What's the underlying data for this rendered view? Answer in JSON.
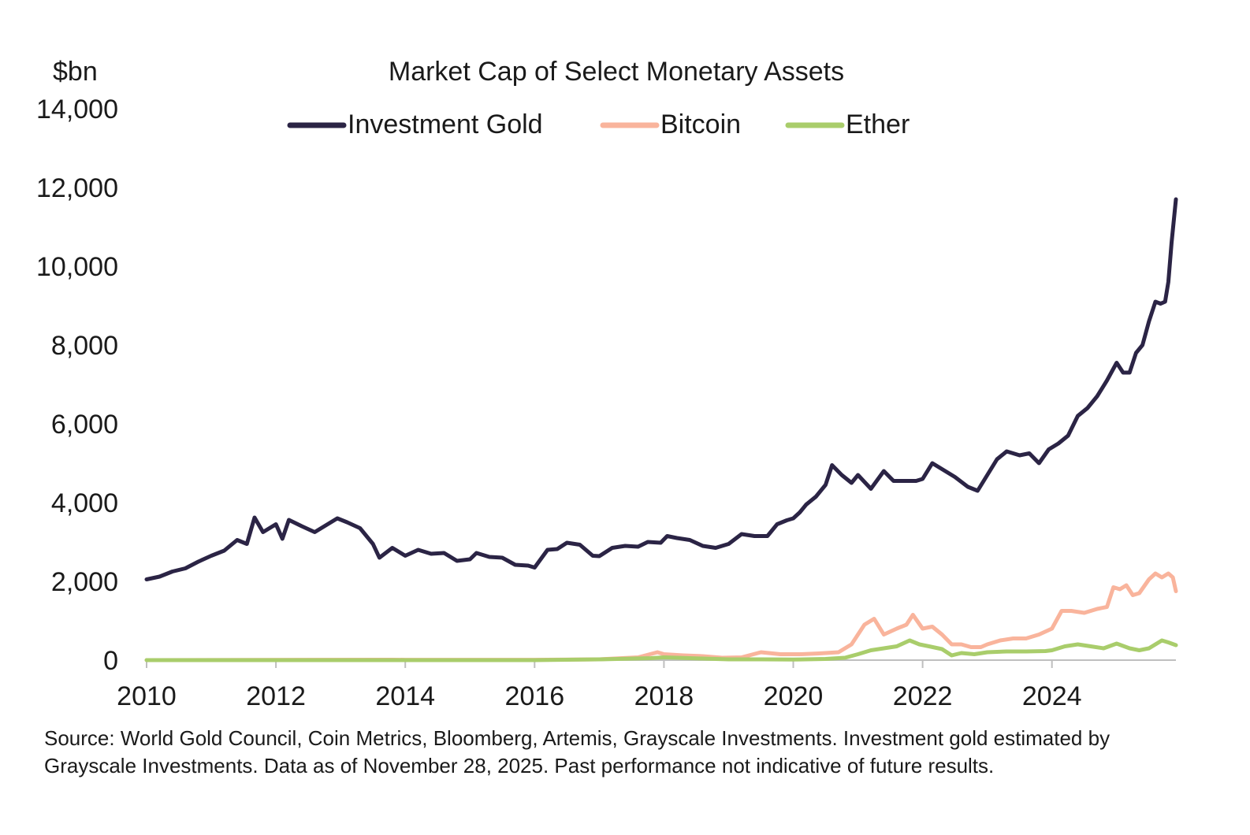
{
  "chart_data": {
    "type": "line",
    "title": "Market Cap of Select Monetary Assets",
    "ylabel": "$bn",
    "xlabel": "",
    "ylim": [
      0,
      14000
    ],
    "xlim": [
      2010,
      2025.917
    ],
    "yticks": [
      0,
      2000,
      4000,
      6000,
      8000,
      10000,
      12000,
      14000
    ],
    "ytick_labels": [
      "0",
      "2,000",
      "4,000",
      "6,000",
      "8,000",
      "10,000",
      "12,000",
      "14,000"
    ],
    "xticks": [
      2010,
      2012,
      2014,
      2016,
      2018,
      2020,
      2022,
      2024
    ],
    "xtick_labels": [
      "2010",
      "2012",
      "2014",
      "2016",
      "2018",
      "2020",
      "2022",
      "2024"
    ],
    "legend_position": "top-center",
    "series": [
      {
        "name": "Investment Gold",
        "color": "#2b2445",
        "points": [
          [
            2010.0,
            2050
          ],
          [
            2010.2,
            2120
          ],
          [
            2010.4,
            2250
          ],
          [
            2010.6,
            2330
          ],
          [
            2010.8,
            2500
          ],
          [
            2011.0,
            2650
          ],
          [
            2011.2,
            2780
          ],
          [
            2011.4,
            3050
          ],
          [
            2011.55,
            2950
          ],
          [
            2011.67,
            3620
          ],
          [
            2011.8,
            3250
          ],
          [
            2012.0,
            3450
          ],
          [
            2012.1,
            3080
          ],
          [
            2012.2,
            3560
          ],
          [
            2012.4,
            3400
          ],
          [
            2012.6,
            3250
          ],
          [
            2012.8,
            3450
          ],
          [
            2012.95,
            3600
          ],
          [
            2013.1,
            3500
          ],
          [
            2013.3,
            3350
          ],
          [
            2013.5,
            2950
          ],
          [
            2013.6,
            2600
          ],
          [
            2013.8,
            2850
          ],
          [
            2014.0,
            2650
          ],
          [
            2014.2,
            2800
          ],
          [
            2014.4,
            2700
          ],
          [
            2014.6,
            2720
          ],
          [
            2014.8,
            2520
          ],
          [
            2015.0,
            2560
          ],
          [
            2015.1,
            2720
          ],
          [
            2015.3,
            2620
          ],
          [
            2015.5,
            2600
          ],
          [
            2015.7,
            2420
          ],
          [
            2015.9,
            2400
          ],
          [
            2016.0,
            2350
          ],
          [
            2016.2,
            2800
          ],
          [
            2016.35,
            2820
          ],
          [
            2016.5,
            2980
          ],
          [
            2016.7,
            2930
          ],
          [
            2016.9,
            2650
          ],
          [
            2017.0,
            2640
          ],
          [
            2017.2,
            2850
          ],
          [
            2017.4,
            2900
          ],
          [
            2017.6,
            2880
          ],
          [
            2017.75,
            3000
          ],
          [
            2017.95,
            2980
          ],
          [
            2018.05,
            3150
          ],
          [
            2018.2,
            3100
          ],
          [
            2018.4,
            3050
          ],
          [
            2018.6,
            2900
          ],
          [
            2018.8,
            2850
          ],
          [
            2019.0,
            2950
          ],
          [
            2019.2,
            3200
          ],
          [
            2019.4,
            3150
          ],
          [
            2019.6,
            3150
          ],
          [
            2019.75,
            3450
          ],
          [
            2019.9,
            3550
          ],
          [
            2020.0,
            3600
          ],
          [
            2020.1,
            3750
          ],
          [
            2020.2,
            3950
          ],
          [
            2020.35,
            4150
          ],
          [
            2020.5,
            4450
          ],
          [
            2020.6,
            4950
          ],
          [
            2020.75,
            4700
          ],
          [
            2020.9,
            4500
          ],
          [
            2021.0,
            4700
          ],
          [
            2021.2,
            4350
          ],
          [
            2021.4,
            4800
          ],
          [
            2021.55,
            4550
          ],
          [
            2021.7,
            4550
          ],
          [
            2021.9,
            4550
          ],
          [
            2022.0,
            4600
          ],
          [
            2022.15,
            5000
          ],
          [
            2022.3,
            4850
          ],
          [
            2022.5,
            4650
          ],
          [
            2022.7,
            4400
          ],
          [
            2022.85,
            4300
          ],
          [
            2023.0,
            4700
          ],
          [
            2023.15,
            5100
          ],
          [
            2023.3,
            5300
          ],
          [
            2023.5,
            5200
          ],
          [
            2023.65,
            5250
          ],
          [
            2023.8,
            5000
          ],
          [
            2023.95,
            5350
          ],
          [
            2024.1,
            5500
          ],
          [
            2024.25,
            5700
          ],
          [
            2024.4,
            6200
          ],
          [
            2024.55,
            6400
          ],
          [
            2024.7,
            6700
          ],
          [
            2024.85,
            7100
          ],
          [
            2025.0,
            7550
          ],
          [
            2025.1,
            7300
          ],
          [
            2025.2,
            7300
          ],
          [
            2025.3,
            7800
          ],
          [
            2025.4,
            8000
          ],
          [
            2025.5,
            8600
          ],
          [
            2025.6,
            9100
          ],
          [
            2025.68,
            9050
          ],
          [
            2025.75,
            9100
          ],
          [
            2025.8,
            9600
          ],
          [
            2025.85,
            10600
          ],
          [
            2025.88,
            11100
          ],
          [
            2025.917,
            11700
          ]
        ]
      },
      {
        "name": "Bitcoin",
        "color": "#f9b49c",
        "points": [
          [
            2010.0,
            0
          ],
          [
            2013.8,
            10
          ],
          [
            2014.0,
            8
          ],
          [
            2016.0,
            8
          ],
          [
            2017.0,
            20
          ],
          [
            2017.6,
            70
          ],
          [
            2017.9,
            200
          ],
          [
            2018.0,
            150
          ],
          [
            2018.3,
            120
          ],
          [
            2018.6,
            100
          ],
          [
            2018.9,
            60
          ],
          [
            2019.2,
            70
          ],
          [
            2019.5,
            200
          ],
          [
            2019.8,
            150
          ],
          [
            2020.1,
            150
          ],
          [
            2020.4,
            170
          ],
          [
            2020.7,
            200
          ],
          [
            2020.9,
            400
          ],
          [
            2021.1,
            900
          ],
          [
            2021.25,
            1050
          ],
          [
            2021.4,
            650
          ],
          [
            2021.6,
            800
          ],
          [
            2021.75,
            900
          ],
          [
            2021.85,
            1150
          ],
          [
            2022.0,
            800
          ],
          [
            2022.15,
            850
          ],
          [
            2022.3,
            650
          ],
          [
            2022.45,
            400
          ],
          [
            2022.6,
            400
          ],
          [
            2022.75,
            330
          ],
          [
            2022.9,
            330
          ],
          [
            2023.0,
            400
          ],
          [
            2023.2,
            500
          ],
          [
            2023.4,
            550
          ],
          [
            2023.6,
            550
          ],
          [
            2023.8,
            650
          ],
          [
            2024.0,
            800
          ],
          [
            2024.15,
            1250
          ],
          [
            2024.3,
            1250
          ],
          [
            2024.5,
            1200
          ],
          [
            2024.7,
            1300
          ],
          [
            2024.85,
            1350
          ],
          [
            2024.95,
            1850
          ],
          [
            2025.05,
            1800
          ],
          [
            2025.15,
            1900
          ],
          [
            2025.25,
            1650
          ],
          [
            2025.35,
            1700
          ],
          [
            2025.5,
            2050
          ],
          [
            2025.6,
            2200
          ],
          [
            2025.7,
            2100
          ],
          [
            2025.8,
            2200
          ],
          [
            2025.87,
            2100
          ],
          [
            2025.917,
            1750
          ]
        ]
      },
      {
        "name": "Ether",
        "color": "#a9cd6b",
        "points": [
          [
            2010.0,
            0
          ],
          [
            2016.0,
            0
          ],
          [
            2017.0,
            20
          ],
          [
            2017.8,
            50
          ],
          [
            2018.0,
            70
          ],
          [
            2018.2,
            60
          ],
          [
            2018.6,
            40
          ],
          [
            2019.0,
            20
          ],
          [
            2019.5,
            20
          ],
          [
            2020.0,
            15
          ],
          [
            2020.5,
            30
          ],
          [
            2020.8,
            60
          ],
          [
            2021.0,
            150
          ],
          [
            2021.2,
            250
          ],
          [
            2021.4,
            300
          ],
          [
            2021.6,
            350
          ],
          [
            2021.8,
            500
          ],
          [
            2021.95,
            400
          ],
          [
            2022.1,
            350
          ],
          [
            2022.3,
            280
          ],
          [
            2022.45,
            120
          ],
          [
            2022.6,
            180
          ],
          [
            2022.8,
            150
          ],
          [
            2023.0,
            200
          ],
          [
            2023.3,
            220
          ],
          [
            2023.6,
            220
          ],
          [
            2023.9,
            230
          ],
          [
            2024.0,
            250
          ],
          [
            2024.2,
            350
          ],
          [
            2024.4,
            400
          ],
          [
            2024.6,
            350
          ],
          [
            2024.8,
            300
          ],
          [
            2025.0,
            420
          ],
          [
            2025.2,
            300
          ],
          [
            2025.35,
            250
          ],
          [
            2025.5,
            300
          ],
          [
            2025.6,
            400
          ],
          [
            2025.7,
            500
          ],
          [
            2025.8,
            450
          ],
          [
            2025.917,
            380
          ]
        ]
      }
    ]
  },
  "source_note": "Source: World Gold Council, Coin Metrics, Bloomberg, Artemis, Grayscale Investments. Investment gold estimated by Grayscale Investments. Data as of November 28, 2025. Past performance not indicative of future results."
}
